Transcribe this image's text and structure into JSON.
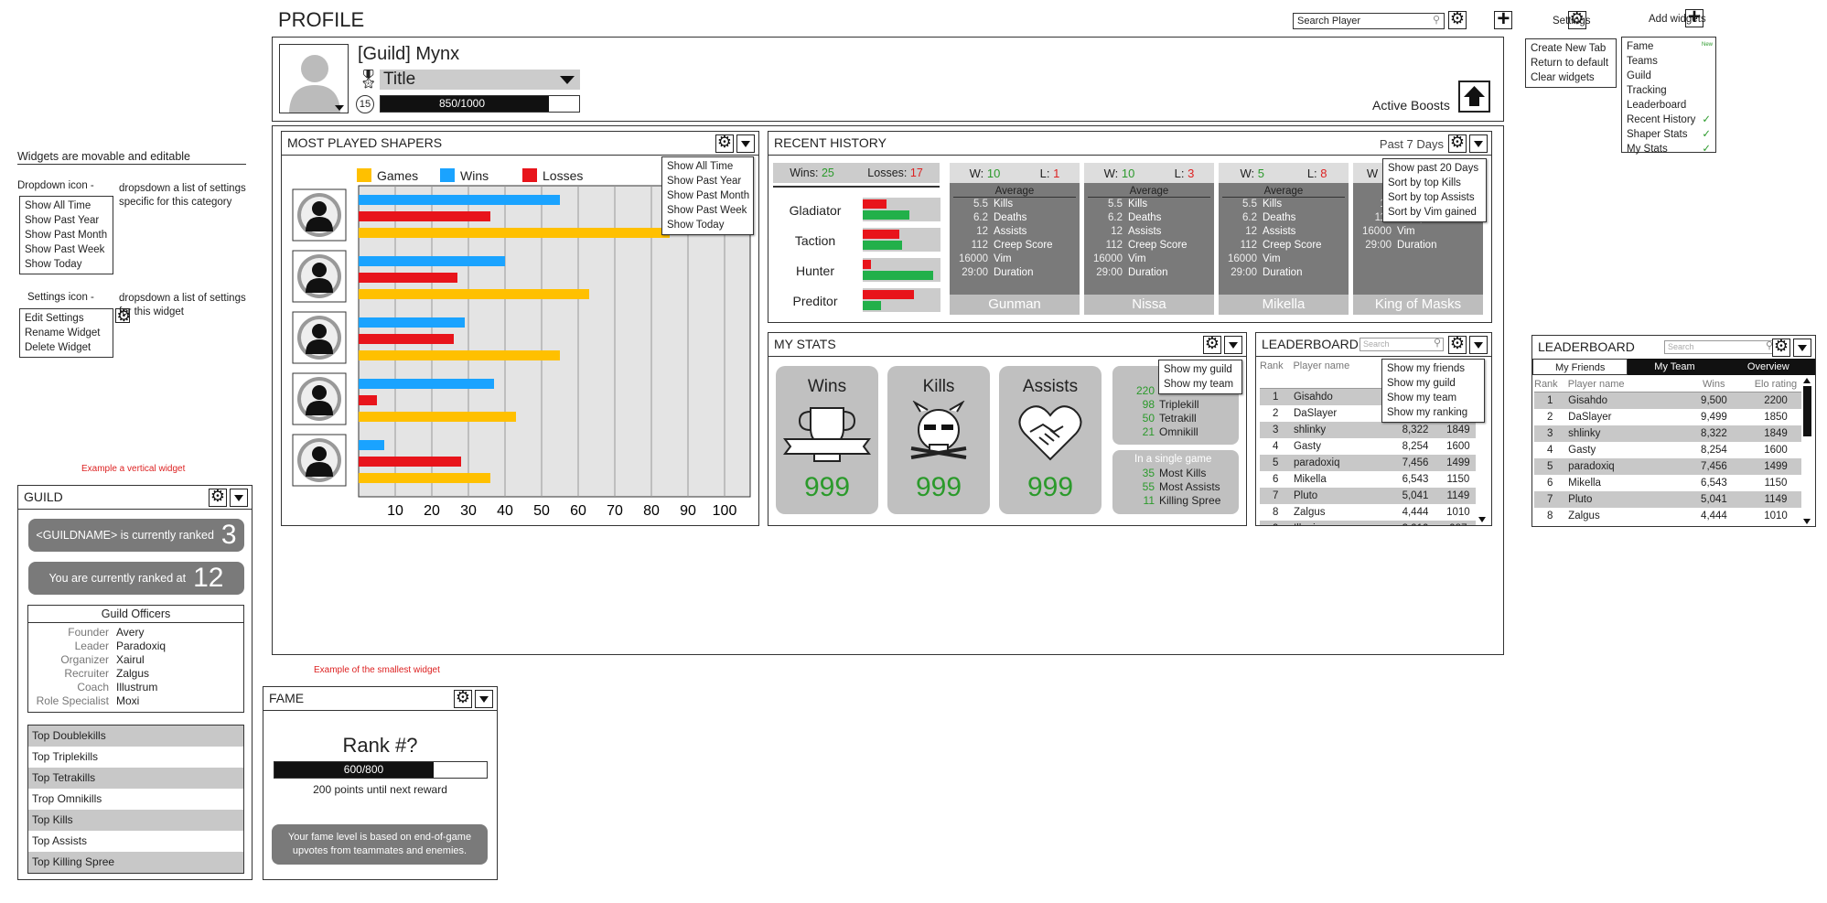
{
  "page_title": "PROFILE",
  "search": {
    "placeholder": "Search Player"
  },
  "settings_panel": {
    "label": "Settings",
    "items": [
      "Create New Tab",
      "Return to default",
      "Clear widgets"
    ]
  },
  "add_widgets": {
    "label": "Add widgets",
    "new_label": "New",
    "items": [
      {
        "label": "Fame",
        "checked": false
      },
      {
        "label": "Teams",
        "checked": false
      },
      {
        "label": "Guild",
        "checked": false
      },
      {
        "label": "Tracking",
        "checked": false
      },
      {
        "label": "Leaderboard",
        "checked": false
      },
      {
        "label": "Recent History",
        "checked": true
      },
      {
        "label": "Shaper Stats",
        "checked": true
      },
      {
        "label": "My Stats",
        "checked": true
      }
    ]
  },
  "profile": {
    "name": "[Guild] Mynx",
    "title": "Title",
    "level": "15",
    "xp_text": "850/1000",
    "xp_fraction": 0.85,
    "active_boosts": "Active Boosts"
  },
  "notes": {
    "heading": "Widgets are movable and editable",
    "dropdown_label": "Dropdown icon -",
    "dropdown_desc": "dropsdown a list of settings specific for this category",
    "dropdown_items": [
      "Show All Time",
      "Show Past Year",
      "Show Past Month",
      "Show Past Week",
      "Show Today"
    ],
    "settings_label": "Settings icon -",
    "settings_desc": "dropsdown a list of settings for this widget",
    "settings_items": [
      "Edit Settings",
      "Rename Widget",
      "Delete Widget"
    ],
    "vertical_example": "Example a vertical widget",
    "smallest_example": "Example of the smallest widget"
  },
  "most_played": {
    "title": "MOST PLAYED SHAPERS",
    "menu": [
      "Show All Time",
      "Show Past Year",
      "Show Past Month",
      "Show Past Week",
      "Show Today"
    ]
  },
  "chart_data": {
    "type": "bar",
    "orientation": "horizontal",
    "categories": [
      "Shaper 1",
      "Shaper 2",
      "Shaper 3",
      "Shaper 4",
      "Shaper 5"
    ],
    "series": [
      {
        "name": "Games",
        "color": "#ffc000",
        "values": [
          85,
          63,
          55,
          43,
          36
        ]
      },
      {
        "name": "Wins",
        "color": "#1aa3ff",
        "values": [
          55,
          40,
          29,
          37,
          7
        ]
      },
      {
        "name": "Losses",
        "color": "#e8141b",
        "values": [
          36,
          27,
          26,
          5,
          28
        ]
      }
    ],
    "xticks": [
      10,
      20,
      30,
      40,
      50,
      60,
      70,
      80,
      90,
      100
    ],
    "xlim": [
      0,
      107
    ],
    "grid": true,
    "legend": "top"
  },
  "recent_history": {
    "title": "RECENT HISTORY",
    "range": "Past 7 Days",
    "menu": [
      "Show past 20 Days",
      "Sort by top Kills",
      "Sort by top Assists",
      "Sort by Vim gained"
    ],
    "wins_label": "Wins:",
    "wins": "25",
    "losses_label": "Losses:",
    "losses": "17",
    "shapers": [
      {
        "name": "Gladiator",
        "loss": 0.3,
        "win": 0.6
      },
      {
        "name": "Taction",
        "loss": 0.47,
        "win": 0.5
      },
      {
        "name": "Hunter",
        "loss": 0.1,
        "win": 0.9
      },
      {
        "name": "Preditor",
        "loss": 0.66,
        "win": 0.23
      }
    ],
    "average_label": "Average",
    "games": [
      {
        "w": "10",
        "l": "1",
        "name": "Gunman",
        "stats": [
          [
            "5.5",
            "Kills"
          ],
          [
            "6.2",
            "Deaths"
          ],
          [
            "12",
            "Assists"
          ],
          [
            "112",
            "Creep Score"
          ],
          [
            "16000",
            "Vim"
          ],
          [
            "29:00",
            "Duration"
          ]
        ]
      },
      {
        "w": "10",
        "l": "3",
        "name": "Nissa",
        "stats": [
          [
            "5.5",
            "Kills"
          ],
          [
            "6.2",
            "Deaths"
          ],
          [
            "12",
            "Assists"
          ],
          [
            "112",
            "Creep Score"
          ],
          [
            "16000",
            "Vim"
          ],
          [
            "29:00",
            "Duration"
          ]
        ]
      },
      {
        "w": "5",
        "l": "8",
        "name": "Mikella",
        "stats": [
          [
            "5.5",
            "Kills"
          ],
          [
            "6.2",
            "Deaths"
          ],
          [
            "12",
            "Assists"
          ],
          [
            "112",
            "Creep Score"
          ],
          [
            "16000",
            "Vim"
          ],
          [
            "29:00",
            "Duration"
          ]
        ]
      },
      {
        "w": "",
        "l": "",
        "name": "King of Masks",
        "stats": [
          [
            "5.5",
            "Kills"
          ],
          [
            "6.2",
            "Deaths"
          ],
          [
            "12",
            "Assists"
          ],
          [
            "112",
            "Creep Score"
          ],
          [
            "16000",
            "Vim"
          ],
          [
            "29:00",
            "Duration"
          ]
        ]
      }
    ]
  },
  "my_stats": {
    "title": "MY STATS",
    "menu": [
      "Show my guild",
      "Show my team"
    ],
    "cards": [
      {
        "label": "Wins",
        "value": "999"
      },
      {
        "label": "Kills",
        "value": "999"
      },
      {
        "label": "Assists",
        "value": "999"
      }
    ],
    "multi": [
      [
        "220",
        ""
      ],
      [
        "98",
        "Triplekill"
      ],
      [
        "50",
        "Tetrakill"
      ],
      [
        "21",
        "Omnikill"
      ]
    ],
    "single_title": "In a single game",
    "single": [
      [
        "35",
        "Most Kills"
      ],
      [
        "55",
        "Most Assists"
      ],
      [
        "11",
        "Killing Spree"
      ]
    ]
  },
  "leaderboard": {
    "title": "LEADERBOARD",
    "search_placeholder": "Search",
    "menu": [
      "Show my friends",
      "Show my guild",
      "Show my team",
      "Show my ranking"
    ],
    "headers": [
      "Rank",
      "Player name",
      "Wins",
      "Elo rating"
    ],
    "rows": [
      [
        "1",
        "Gisahdo",
        "9,500",
        "2200"
      ],
      [
        "2",
        "DaSlayer",
        "9,499",
        "1850"
      ],
      [
        "3",
        "shlinky",
        "8,322",
        "1849"
      ],
      [
        "4",
        "Gasty",
        "8,254",
        "1600"
      ],
      [
        "5",
        "paradoxiq",
        "7,456",
        "1499"
      ],
      [
        "6",
        "Mikella",
        "6,543",
        "1150"
      ],
      [
        "7",
        "Pluto",
        "5,041",
        "1149"
      ],
      [
        "8",
        "Zalgus",
        "4,444",
        "1010"
      ],
      [
        "9",
        "Illogic",
        "3,210",
        "987"
      ]
    ],
    "tabs": [
      "My Friends",
      "My Team",
      "Overview"
    ]
  },
  "guild": {
    "title": "GUILD",
    "rank_text": "<GUILDNAME> is currently ranked",
    "rank": "3",
    "you_text": "You are currently ranked at",
    "you_rank": "12",
    "officers_title": "Guild Officers",
    "officers": [
      [
        "Founder",
        "Avery"
      ],
      [
        "Leader",
        "Paradoxiq"
      ],
      [
        "Organizer",
        "Xairul"
      ],
      [
        "Recruiter",
        "Zalgus"
      ],
      [
        "Coach",
        "Illustrum"
      ],
      [
        "Role Specialist",
        "Moxi"
      ]
    ],
    "tops": [
      "Top Doublekills",
      "Top Triplekills",
      "Top Tetrakills",
      "Trop Omnikills",
      "Top Kills",
      "Top Assists",
      "Top Killing Spree"
    ]
  },
  "fame": {
    "title": "FAME",
    "rank": "Rank #?",
    "xp_text": "600/800",
    "xp_fraction": 0.75,
    "next": "200 points until next reward",
    "note": "Your fame level is based on end-of-game upvotes from teammates and enemies."
  }
}
